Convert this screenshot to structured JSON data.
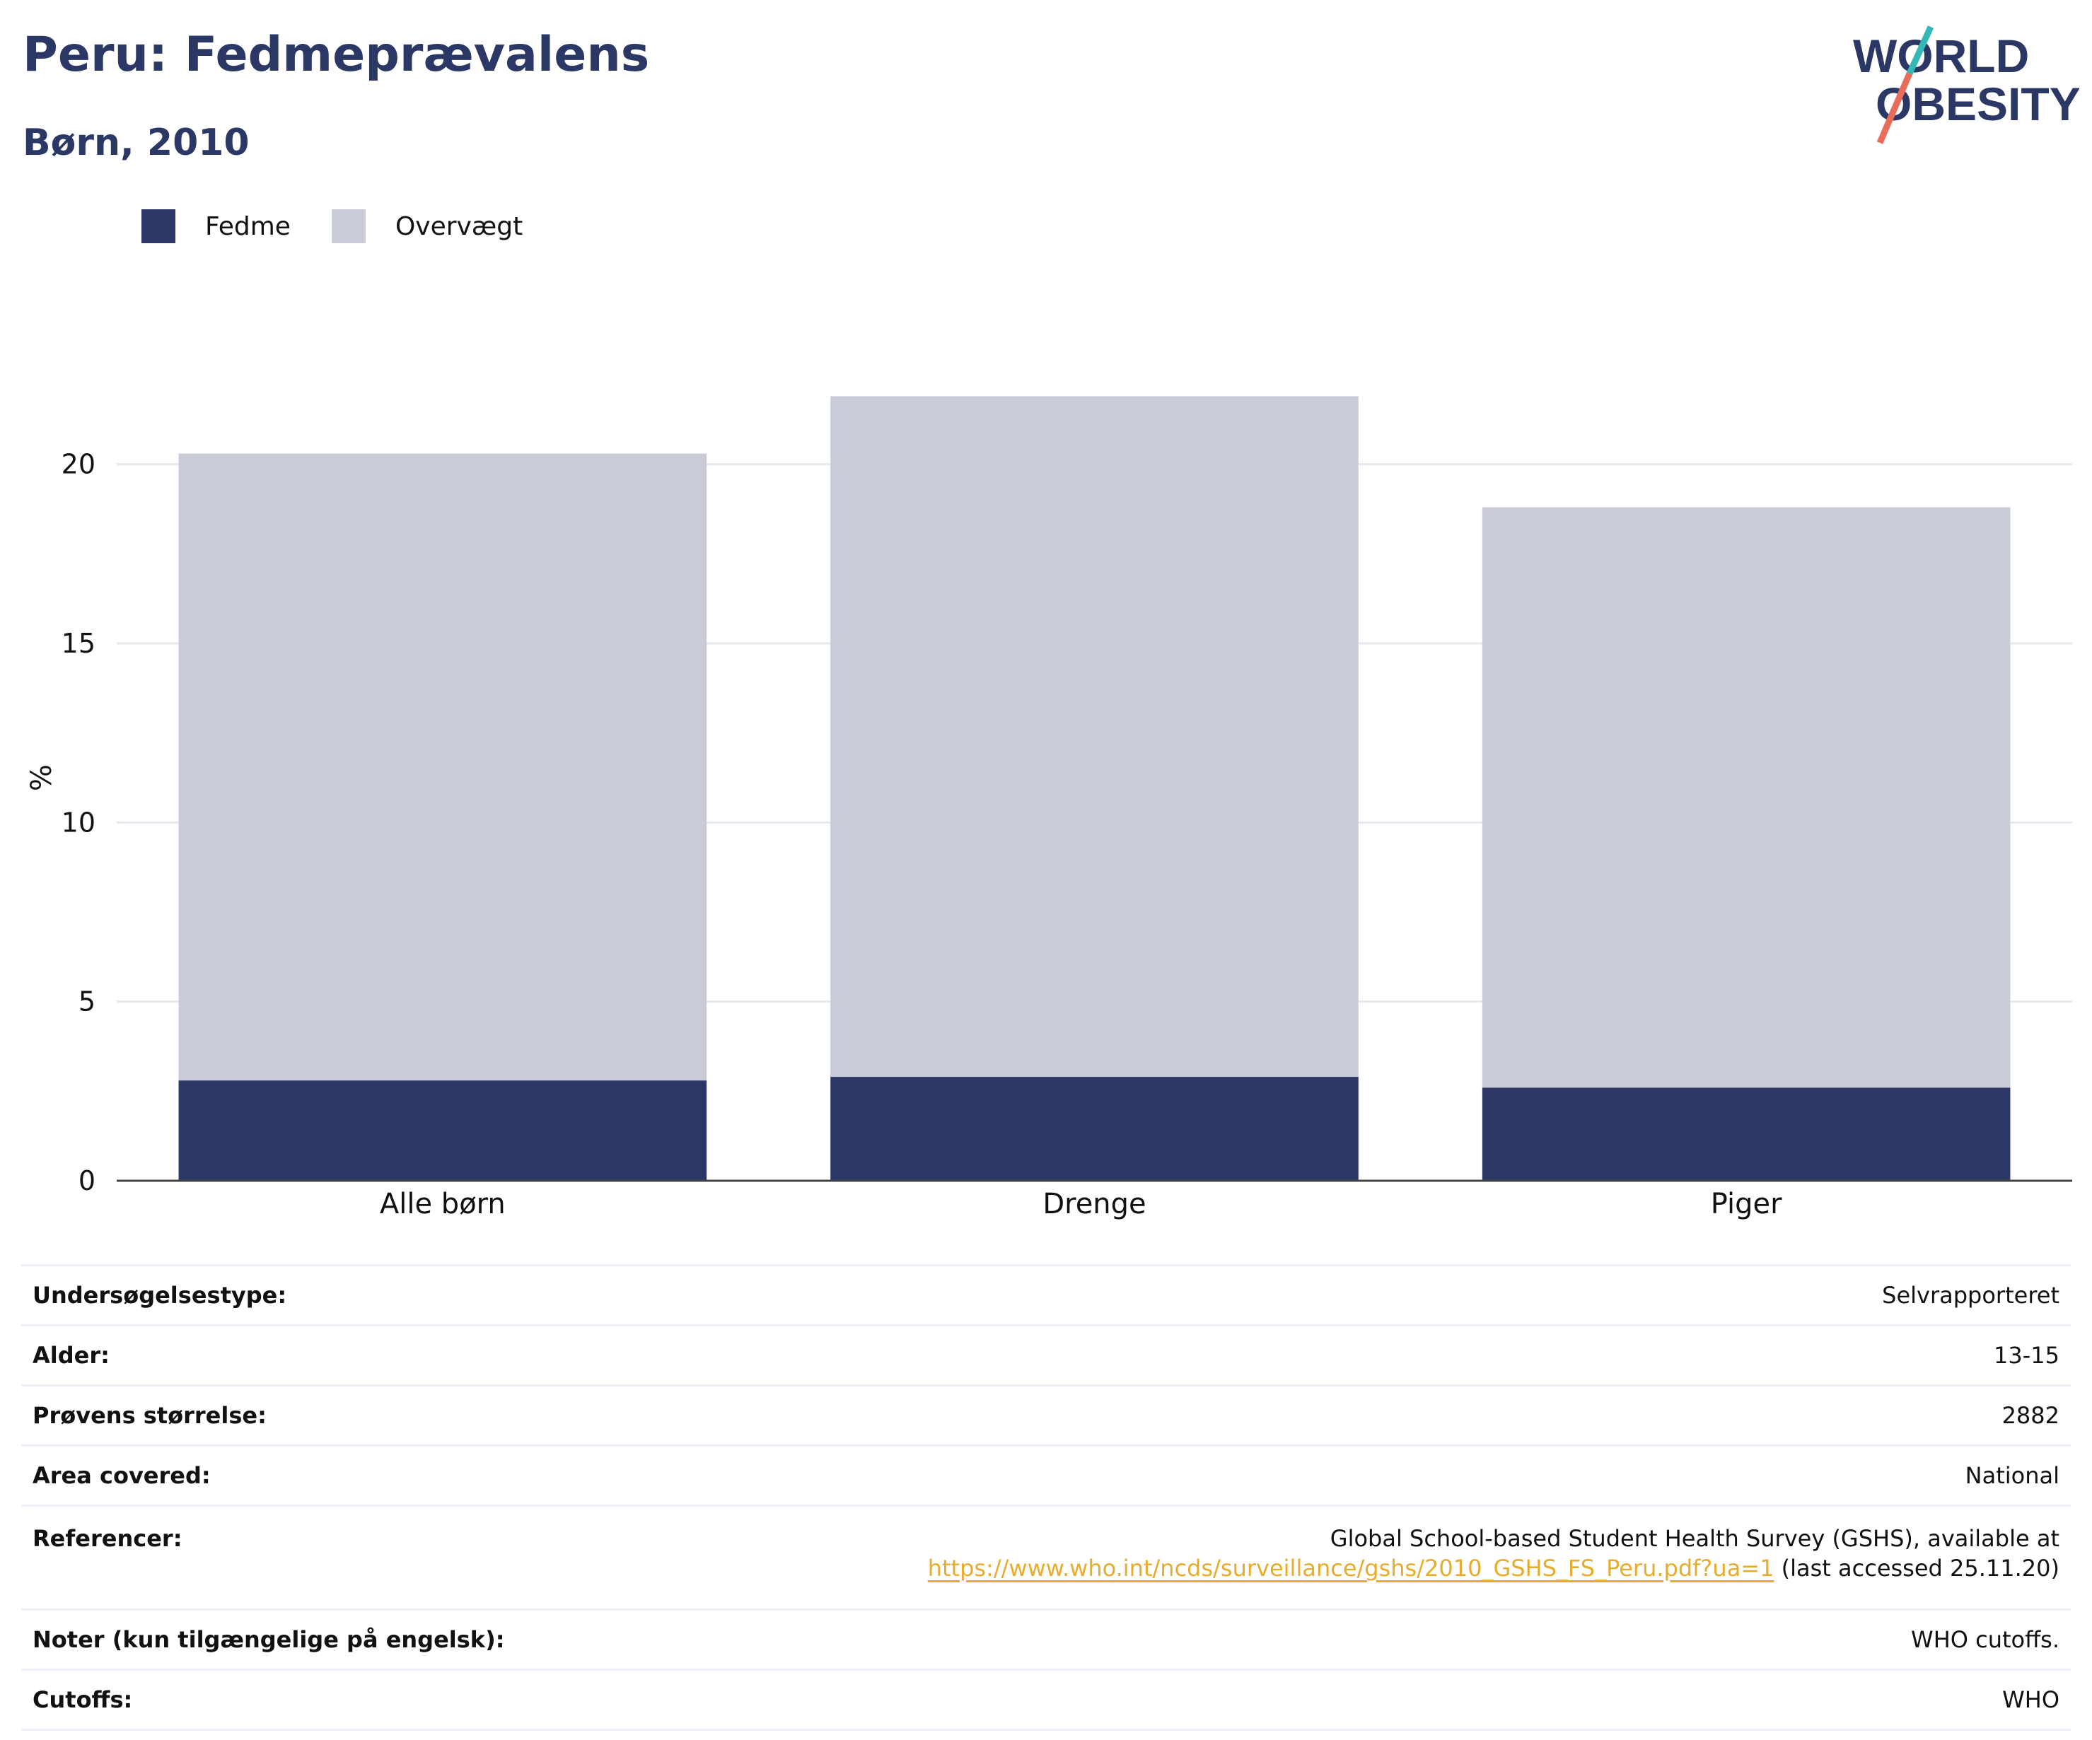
{
  "header": {
    "title": "Peru: Fedmeprævalens",
    "subtitle": "Børn, 2010"
  },
  "logo": {
    "line1": "WORLD",
    "line2": "OBESITY",
    "colors": {
      "text": "#2b3764",
      "slash_top": "#35b8b5",
      "slash_bottom": "#e86c5a"
    }
  },
  "legend": [
    {
      "label": "Fedme",
      "color": "#2b3764"
    },
    {
      "label": "Overvægt",
      "color": "#c9cbd7"
    }
  ],
  "chart_data": {
    "type": "bar",
    "stacked": true,
    "categories": [
      "Alle børn",
      "Drenge",
      "Piger"
    ],
    "series": [
      {
        "name": "Fedme",
        "color": "#2b3764",
        "values": [
          2.8,
          2.9,
          2.6
        ]
      },
      {
        "name": "Overvægt",
        "color": "#c9cbd7",
        "values": [
          17.5,
          19.0,
          16.2
        ]
      }
    ],
    "ylabel": "%",
    "yticks": [
      0,
      5,
      10,
      15,
      20
    ],
    "ylim": [
      0,
      22.5
    ],
    "grid": true,
    "legend_position": "top-left"
  },
  "info": {
    "survey_type": {
      "label": "Undersøgelsestype:",
      "value": "Selvrapporteret"
    },
    "age": {
      "label": "Alder:",
      "value": "13-15"
    },
    "sample_size": {
      "label": "Prøvens størrelse:",
      "value": "2882"
    },
    "area": {
      "label": "Area covered:",
      "value": "National"
    },
    "references": {
      "label": "Referencer:",
      "text_before": "Global School-based Student Health Survey (GSHS), available at",
      "link": "https://www.who.int/ncds/surveillance/gshs/2010_GSHS_FS_Peru.pdf?ua=1",
      "text_after": " (last accessed 25.11.20)"
    },
    "notes": {
      "label": "Noter (kun tilgængelige på engelsk):",
      "value": "WHO cutoffs."
    },
    "cutoffs": {
      "label": "Cutoffs:",
      "value": "WHO"
    }
  }
}
